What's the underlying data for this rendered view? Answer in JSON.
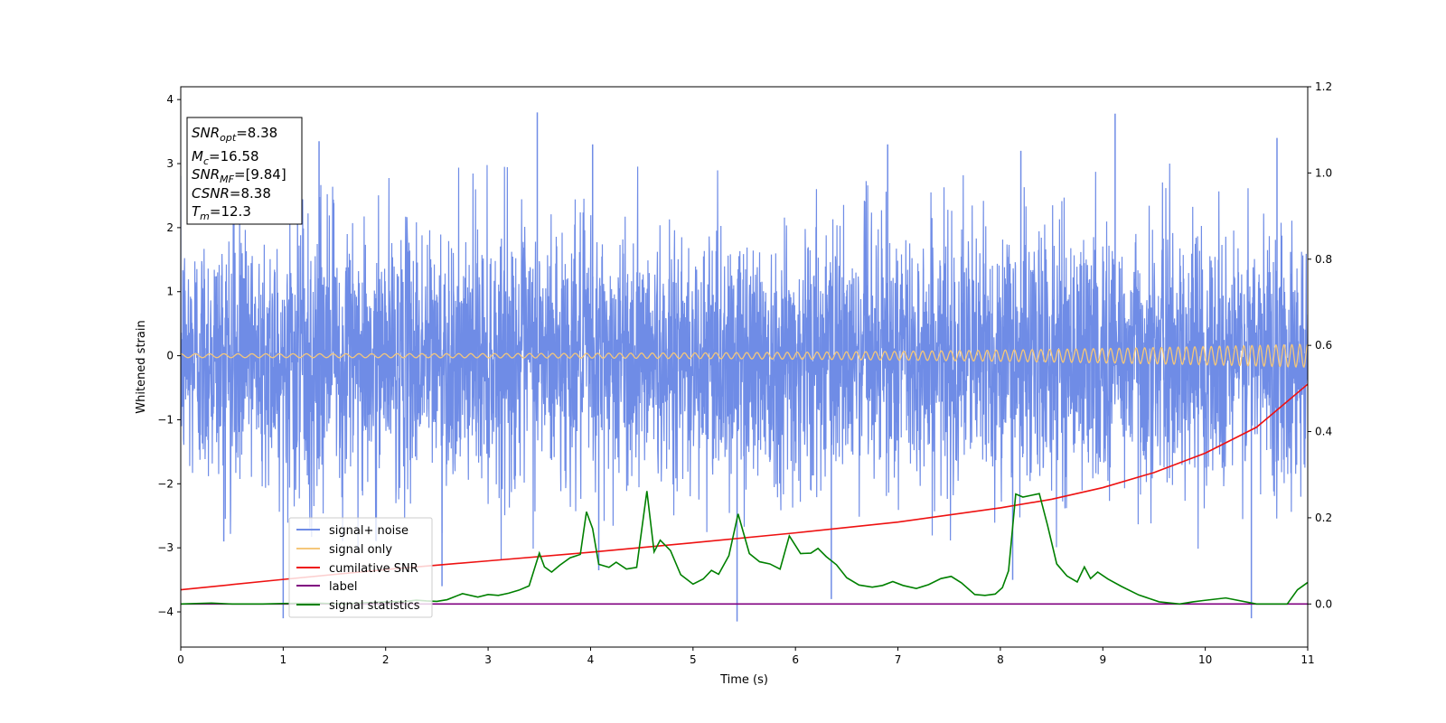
{
  "chart_data": {
    "type": "line",
    "xlabel": "Time (s)",
    "ylabel": "Whitened strain",
    "xlim": [
      0,
      11
    ],
    "ylim": [
      -4.55,
      4.2
    ],
    "y2lim": [
      -0.1,
      1.2
    ],
    "grid": false,
    "x_ticks": [
      "0",
      "1",
      "2",
      "3",
      "4",
      "5",
      "6",
      "7",
      "8",
      "9",
      "10",
      "11"
    ],
    "y_ticks": [
      "−4",
      "−3",
      "−2",
      "−1",
      "0",
      "1",
      "2",
      "3",
      "4"
    ],
    "y2_ticks": [
      "0.0",
      "0.2",
      "0.4",
      "0.6",
      "0.8",
      "1.0",
      "1.2"
    ],
    "info_box": {
      "snr_opt": "=8.38",
      "mc": "=16.58",
      "snr_mf": "=[9.84]",
      "csnr": "=8.38",
      "tm": "=12.3"
    },
    "legend": {
      "location": "lower left",
      "entries": [
        "signal+ noise",
        "signal only",
        "cumilative SNR",
        "label",
        "signal statistics"
      ]
    },
    "series": [
      {
        "name": "signal+ noise",
        "axis": "left",
        "color": "#6f8ce6",
        "description_range": [
          -4.1,
          3.8
        ],
        "noise_std": 1.0,
        "spikes": [
          [
            3.48,
            3.8
          ],
          [
            9.12,
            3.78
          ],
          [
            5.43,
            -4.15
          ],
          [
            10.45,
            -4.1
          ],
          [
            1.0,
            -4.1
          ],
          [
            0.42,
            -2.9
          ],
          [
            2.55,
            -3.6
          ],
          [
            4.08,
            -3.35
          ],
          [
            6.35,
            -3.8
          ],
          [
            8.12,
            -3.5
          ],
          [
            1.35,
            3.35
          ],
          [
            4.02,
            3.3
          ],
          [
            6.9,
            3.3
          ],
          [
            8.2,
            3.2
          ],
          [
            10.7,
            3.4
          ]
        ]
      },
      {
        "name": "signal only",
        "axis": "left",
        "color": "#f5c77a",
        "amplitude_start": 0.03,
        "amplitude_end": 0.18,
        "freq_start_hz": 7.0,
        "freq_end_hz": 13.0
      },
      {
        "name": "cumilative SNR",
        "axis": "right",
        "color": "#ee1111",
        "x": [
          0,
          1,
          2,
          3,
          4,
          5,
          6,
          7,
          8,
          8.5,
          9,
          9.5,
          10,
          10.5,
          11
        ],
        "y": [
          0.033,
          0.057,
          0.08,
          0.1,
          0.12,
          0.142,
          0.165,
          0.19,
          0.223,
          0.243,
          0.27,
          0.305,
          0.35,
          0.41,
          0.51
        ]
      },
      {
        "name": "label",
        "axis": "right",
        "color": "#800080",
        "x": [
          0,
          11
        ],
        "y": [
          0.0,
          0.0
        ]
      },
      {
        "name": "signal statistics",
        "axis": "right",
        "color": "#008000",
        "x": [
          0,
          0.3,
          0.5,
          0.8,
          1.0,
          1.3,
          1.6,
          1.8,
          2.0,
          2.2,
          2.3,
          2.4,
          2.5,
          2.6,
          2.75,
          2.9,
          3.0,
          3.1,
          3.2,
          3.3,
          3.4,
          3.5,
          3.55,
          3.62,
          3.7,
          3.8,
          3.9,
          3.96,
          4.02,
          4.08,
          4.18,
          4.25,
          4.35,
          4.45,
          4.55,
          4.62,
          4.68,
          4.78,
          4.88,
          5.0,
          5.1,
          5.18,
          5.25,
          5.35,
          5.44,
          5.55,
          5.65,
          5.75,
          5.85,
          5.94,
          6.05,
          6.15,
          6.22,
          6.3,
          6.4,
          6.5,
          6.62,
          6.75,
          6.85,
          6.95,
          7.05,
          7.18,
          7.3,
          7.42,
          7.52,
          7.62,
          7.75,
          7.85,
          7.95,
          8.02,
          8.08,
          8.15,
          8.22,
          8.3,
          8.38,
          8.46,
          8.55,
          8.65,
          8.75,
          8.82,
          8.88,
          8.95,
          9.05,
          9.18,
          9.35,
          9.55,
          9.75,
          9.88,
          9.98,
          10.2,
          10.5,
          10.8,
          10.9,
          11.0
        ],
        "y": [
          0.0,
          0.002,
          0.0,
          0.0,
          0.001,
          0.002,
          0.0,
          0.003,
          0.005,
          0.006,
          0.009,
          0.007,
          0.006,
          0.01,
          0.024,
          0.016,
          0.022,
          0.02,
          0.025,
          0.032,
          0.042,
          0.118,
          0.086,
          0.074,
          0.09,
          0.107,
          0.115,
          0.214,
          0.175,
          0.092,
          0.085,
          0.097,
          0.081,
          0.085,
          0.262,
          0.121,
          0.148,
          0.124,
          0.068,
          0.046,
          0.058,
          0.078,
          0.069,
          0.112,
          0.209,
          0.117,
          0.098,
          0.093,
          0.081,
          0.158,
          0.117,
          0.118,
          0.129,
          0.11,
          0.091,
          0.061,
          0.044,
          0.039,
          0.043,
          0.052,
          0.043,
          0.036,
          0.045,
          0.059,
          0.064,
          0.049,
          0.022,
          0.02,
          0.023,
          0.038,
          0.077,
          0.255,
          0.248,
          0.252,
          0.256,
          0.183,
          0.093,
          0.065,
          0.051,
          0.086,
          0.059,
          0.074,
          0.058,
          0.041,
          0.021,
          0.005,
          0.0,
          0.005,
          0.008,
          0.014,
          0.0,
          0.0,
          0.033,
          0.05
        ]
      }
    ]
  }
}
